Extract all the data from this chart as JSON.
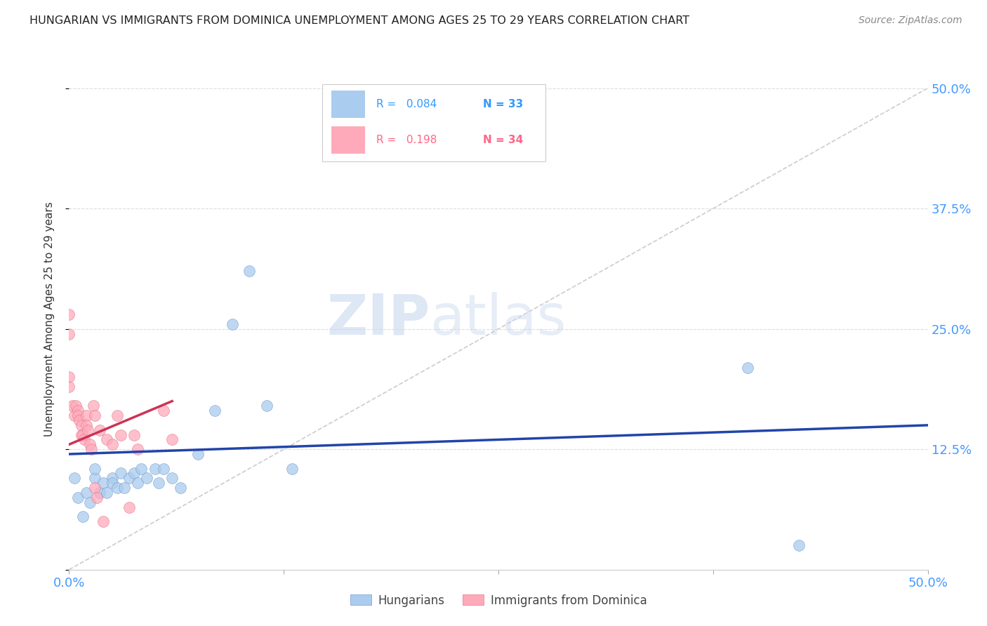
{
  "title": "HUNGARIAN VS IMMIGRANTS FROM DOMINICA UNEMPLOYMENT AMONG AGES 25 TO 29 YEARS CORRELATION CHART",
  "source": "Source: ZipAtlas.com",
  "ylabel": "Unemployment Among Ages 25 to 29 years",
  "xlim": [
    0.0,
    0.5
  ],
  "ylim": [
    0.0,
    0.52
  ],
  "legend_r_blue": "R =   0.084",
  "legend_n_blue": "N = 33",
  "legend_r_pink": "R =   0.198",
  "legend_n_pink": "N = 34",
  "blue_scatter_x": [
    0.003,
    0.005,
    0.008,
    0.01,
    0.012,
    0.015,
    0.015,
    0.018,
    0.02,
    0.022,
    0.025,
    0.025,
    0.028,
    0.03,
    0.032,
    0.035,
    0.038,
    0.04,
    0.042,
    0.045,
    0.05,
    0.052,
    0.055,
    0.06,
    0.065,
    0.075,
    0.085,
    0.095,
    0.105,
    0.115,
    0.13,
    0.395,
    0.425
  ],
  "blue_scatter_y": [
    0.095,
    0.075,
    0.055,
    0.08,
    0.07,
    0.095,
    0.105,
    0.08,
    0.09,
    0.08,
    0.095,
    0.09,
    0.085,
    0.1,
    0.085,
    0.095,
    0.1,
    0.09,
    0.105,
    0.095,
    0.105,
    0.09,
    0.105,
    0.095,
    0.085,
    0.12,
    0.165,
    0.255,
    0.31,
    0.17,
    0.105,
    0.21,
    0.025
  ],
  "pink_scatter_x": [
    0.0,
    0.0,
    0.0,
    0.0,
    0.002,
    0.003,
    0.004,
    0.005,
    0.005,
    0.006,
    0.007,
    0.007,
    0.008,
    0.009,
    0.01,
    0.01,
    0.011,
    0.012,
    0.013,
    0.014,
    0.015,
    0.015,
    0.016,
    0.018,
    0.02,
    0.022,
    0.025,
    0.028,
    0.03,
    0.035,
    0.038,
    0.04,
    0.055,
    0.06
  ],
  "pink_scatter_y": [
    0.265,
    0.245,
    0.2,
    0.19,
    0.17,
    0.16,
    0.17,
    0.165,
    0.16,
    0.155,
    0.15,
    0.14,
    0.14,
    0.135,
    0.16,
    0.15,
    0.145,
    0.13,
    0.125,
    0.17,
    0.16,
    0.085,
    0.075,
    0.145,
    0.05,
    0.135,
    0.13,
    0.16,
    0.14,
    0.065,
    0.14,
    0.125,
    0.165,
    0.135
  ],
  "blue_line_x": [
    0.0,
    0.5
  ],
  "blue_line_y": [
    0.12,
    0.15
  ],
  "pink_line_x": [
    0.0,
    0.06
  ],
  "pink_line_y": [
    0.13,
    0.175
  ],
  "diag_line_x": [
    0.0,
    0.5
  ],
  "diag_line_y": [
    0.0,
    0.5
  ],
  "blue_color": "#aaccee",
  "blue_edge_color": "#7799cc",
  "blue_line_color": "#2244aa",
  "pink_color": "#ffaabb",
  "pink_edge_color": "#dd7788",
  "pink_line_color": "#cc3355",
  "diag_line_color": "#cccccc",
  "watermark_zip": "ZIP",
  "watermark_atlas": "atlas",
  "background_color": "#ffffff",
  "grid_color": "#dddddd",
  "tick_color": "#4499ff",
  "title_color": "#222222",
  "source_color": "#888888",
  "ylabel_color": "#333333"
}
